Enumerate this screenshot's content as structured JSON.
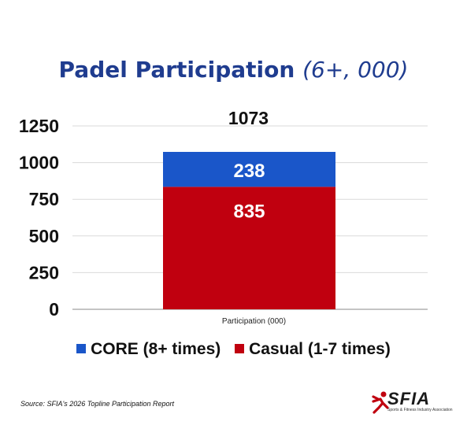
{
  "chart_data": {
    "type": "bar",
    "stacked": true,
    "title": "Padel Participation",
    "subtitle": "(6+, 000)",
    "categories": [
      "Participation (000)"
    ],
    "series": [
      {
        "name": "Casual (1-7 times)",
        "values": [
          835
        ],
        "color": "#c0000f"
      },
      {
        "name": "CORE (8+ times)",
        "values": [
          238
        ],
        "color": "#1a56c9"
      }
    ],
    "totals": [
      1073
    ],
    "yticks": [
      0,
      250,
      500,
      750,
      1000,
      1250
    ],
    "ylim": [
      0,
      1250
    ],
    "grid": true,
    "legend_position": "bottom"
  },
  "legend": {
    "core_label": "CORE (8+ times)",
    "casual_label": "Casual (1-7 times)",
    "core_color": "#1a56c9",
    "casual_color": "#c0000f"
  },
  "source": "Source: SFIA's 2026 Topline Participation Report",
  "logo": {
    "text": "SFIA",
    "tagline": "Sports & Fitness Industry Association",
    "accent_color": "#c0000f"
  }
}
